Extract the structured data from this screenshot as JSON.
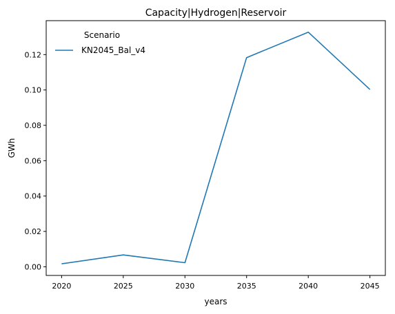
{
  "chart_data": {
    "type": "line",
    "title": "Capacity|Hydrogen|Reservoir",
    "xlabel": "years",
    "ylabel": "GWh",
    "x": [
      2020,
      2025,
      2030,
      2035,
      2040,
      2045
    ],
    "xlim": [
      2018.75,
      2046.25
    ],
    "ylim": [
      -0.0049,
      0.1392
    ],
    "xticks": [
      "2020",
      "2025",
      "2030",
      "2035",
      "2040",
      "2045"
    ],
    "yticks": [
      "0.00",
      "0.02",
      "0.04",
      "0.06",
      "0.08",
      "0.10",
      "0.12"
    ],
    "grid": false,
    "legend": {
      "title": "Scenario",
      "placement": "top-left"
    },
    "series": [
      {
        "name": "KN2045_Bal_v4",
        "color": "#1f77b4",
        "values": [
          0.0017,
          0.0067,
          0.0023,
          0.1183,
          0.1327,
          0.1003
        ]
      }
    ]
  }
}
